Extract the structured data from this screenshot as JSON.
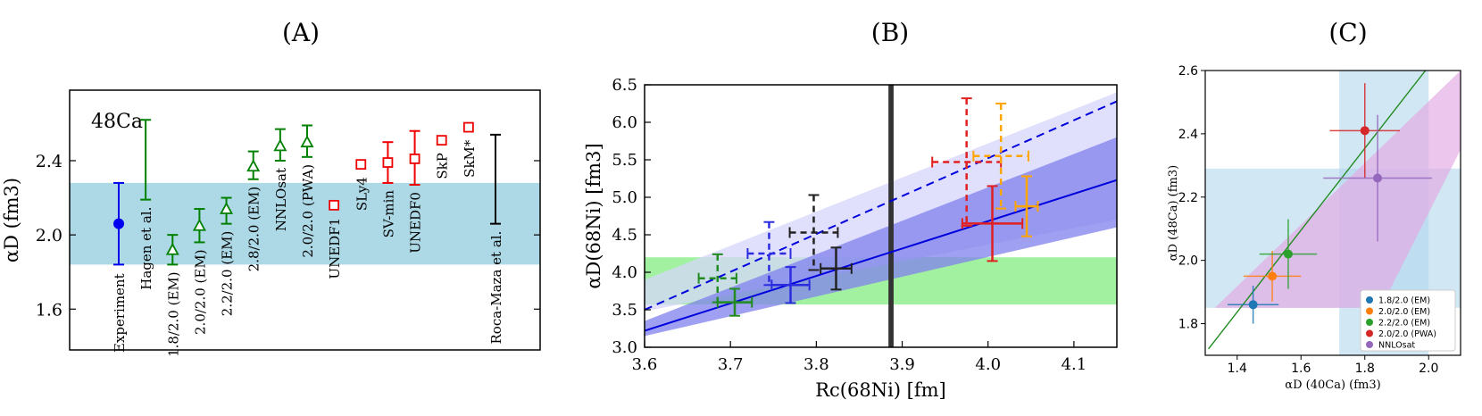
{
  "chart_data": [
    {
      "panel_label": "(A)",
      "type": "scatter",
      "annotation": "48Ca",
      "ylabel": "αD (fm3)",
      "ylim": [
        1.38,
        2.78
      ],
      "yticks": [
        1.6,
        2.0,
        2.4
      ],
      "band": {
        "low": 1.84,
        "high": 2.28,
        "color": "#add8e6"
      },
      "points": [
        {
          "label": "Experiment",
          "value": 2.06,
          "low": 1.84,
          "high": 2.28,
          "marker": "filled-circle",
          "color": "#0000ee"
        },
        {
          "label": "Hagen et al.",
          "low": 2.19,
          "high": 2.62,
          "marker": "none",
          "color": "#008000"
        },
        {
          "label": "1.8/2.0 (EM)",
          "value": 1.92,
          "low": 1.84,
          "high": 2.0,
          "marker": "open-triangle",
          "color": "#008000"
        },
        {
          "label": "2.0/2.0 (EM)",
          "value": 2.05,
          "low": 1.96,
          "high": 2.14,
          "marker": "open-triangle",
          "color": "#008000"
        },
        {
          "label": "2.2/2.0 (EM)",
          "value": 2.14,
          "low": 2.06,
          "high": 2.2,
          "marker": "open-triangle",
          "color": "#008000"
        },
        {
          "label": "2.8/2.0 (EM)",
          "value": 2.37,
          "low": 2.3,
          "high": 2.45,
          "marker": "open-triangle",
          "color": "#008000"
        },
        {
          "label": "NNLOsat",
          "value": 2.48,
          "low": 2.4,
          "high": 2.57,
          "marker": "open-triangle",
          "color": "#008000"
        },
        {
          "label": "2.0/2.0 (PWA)",
          "value": 2.5,
          "low": 2.42,
          "high": 2.59,
          "marker": "open-triangle",
          "color": "#008000"
        },
        {
          "label": "UNEDF1",
          "value": 2.16,
          "marker": "open-square",
          "color": "#ee0000"
        },
        {
          "label": "SLy4",
          "value": 2.38,
          "marker": "open-square",
          "color": "#ee0000"
        },
        {
          "label": "SV-min",
          "value": 2.39,
          "low": 2.28,
          "high": 2.5,
          "marker": "open-square",
          "color": "#ee0000"
        },
        {
          "label": "UNEDF0",
          "value": 2.41,
          "low": 2.27,
          "high": 2.56,
          "marker": "open-square",
          "color": "#ee0000"
        },
        {
          "label": "SkP",
          "value": 2.51,
          "marker": "open-square",
          "color": "#ee0000"
        },
        {
          "label": "SkM*",
          "value": 2.58,
          "marker": "open-square",
          "color": "#ee0000"
        },
        {
          "label": "Roca-Maza et al.",
          "low": 2.06,
          "high": 2.54,
          "marker": "none",
          "color": "#000000"
        }
      ]
    },
    {
      "panel_label": "(B)",
      "type": "scatter",
      "xlabel": "Rc(68Ni) [fm]",
      "ylabel": "αD(68Ni) [fm3]",
      "xlim": [
        3.6,
        4.15
      ],
      "ylim": [
        3.0,
        6.5
      ],
      "xticks": [
        3.6,
        3.7,
        3.8,
        3.9,
        4.0,
        4.1
      ],
      "yticks": [
        3.0,
        3.5,
        4.0,
        4.5,
        5.0,
        5.5,
        6.0,
        6.5
      ],
      "bands": [
        {
          "kind": "horizontal",
          "low": 3.57,
          "high": 4.2,
          "color": "#90ee90"
        },
        {
          "kind": "vertical",
          "low": 3.884,
          "high": 3.89,
          "color": "#333333"
        },
        {
          "kind": "wedge",
          "x0": 3.6,
          "x1": 4.15,
          "low0": 3.48,
          "high0": 3.9,
          "low1": 4.7,
          "high1": 6.4,
          "color": "#d6d6fb"
        },
        {
          "kind": "wedge",
          "x0": 3.6,
          "x1": 4.15,
          "low0": 3.15,
          "high0": 3.35,
          "low1": 4.6,
          "high1": 5.8,
          "color": "#8080ee"
        }
      ],
      "lines": [
        {
          "style": "dashed",
          "color": "#0000dd",
          "x": [
            3.6,
            4.15
          ],
          "y": [
            3.5,
            6.28
          ]
        },
        {
          "style": "solid",
          "color": "#0000dd",
          "x": [
            3.6,
            4.15
          ],
          "y": [
            3.22,
            5.23
          ]
        }
      ],
      "crosses": [
        {
          "x": 3.705,
          "y": 3.6,
          "xerr": 0.02,
          "yerr": 0.18,
          "style": "solid",
          "color": "#228b22"
        },
        {
          "x": 3.77,
          "y": 3.83,
          "xerr": 0.022,
          "yerr": 0.24,
          "style": "solid",
          "color": "#2b2be0"
        },
        {
          "x": 3.823,
          "y": 4.05,
          "xerr": 0.018,
          "yerr": 0.28,
          "style": "solid",
          "color": "#222222"
        },
        {
          "x": 4.005,
          "y": 4.65,
          "xerr": 0.035,
          "yerr": 0.5,
          "style": "solid",
          "color": "#e02020"
        },
        {
          "x": 4.045,
          "y": 4.88,
          "xerr": 0.013,
          "yerr": 0.4,
          "style": "solid",
          "color": "#ffa500"
        },
        {
          "x": 3.685,
          "y": 3.92,
          "xerr": 0.022,
          "yerr": 0.32,
          "style": "dashed",
          "color": "#228b22"
        },
        {
          "x": 3.745,
          "y": 4.25,
          "xerr": 0.025,
          "yerr": 0.42,
          "style": "dashed",
          "color": "#2b2be0"
        },
        {
          "x": 3.797,
          "y": 4.53,
          "xerr": 0.028,
          "yerr": 0.5,
          "style": "dashed",
          "color": "#222222"
        },
        {
          "x": 3.975,
          "y": 5.47,
          "xerr": 0.04,
          "yerr": 0.85,
          "style": "dashed",
          "color": "#e02020"
        },
        {
          "x": 4.015,
          "y": 5.55,
          "xerr": 0.032,
          "yerr": 0.7,
          "style": "dashed",
          "color": "#ffa500"
        }
      ]
    },
    {
      "panel_label": "(C)",
      "type": "scatter",
      "xlabel": "αD (40Ca) (fm3)",
      "ylabel": "αD (48Ca) (fm3)",
      "xlim": [
        1.3,
        2.1
      ],
      "ylim": [
        1.7,
        2.6
      ],
      "xticks": [
        1.4,
        1.6,
        1.8,
        2.0
      ],
      "yticks": [
        1.8,
        2.0,
        2.2,
        2.4,
        2.6
      ],
      "bands": [
        {
          "kind": "vertical",
          "low": 1.72,
          "high": 2.0,
          "color": "#b3d7ec"
        },
        {
          "kind": "horizontal",
          "low": 1.85,
          "high": 2.29,
          "color": "#b3d7ec"
        }
      ],
      "wedge": {
        "x": [
          1.3,
          1.85,
          2.1,
          2.1,
          1.33
        ],
        "y": [
          1.85,
          1.85,
          2.35,
          2.6,
          1.85
        ],
        "color": "#e4a8e4"
      },
      "line": {
        "x": [
          1.31,
          1.99
        ],
        "y": [
          1.72,
          2.6
        ],
        "color": "#228b22"
      },
      "points": [
        {
          "label": "1.8/2.0 (EM)",
          "x": 1.45,
          "y": 1.86,
          "xerr": 0.08,
          "yerr": 0.06,
          "color": "#1f77b4"
        },
        {
          "label": "2.0/2.0 (EM)",
          "x": 1.51,
          "y": 1.95,
          "xerr": 0.09,
          "yerr": 0.08,
          "color": "#ff7f0e"
        },
        {
          "label": "2.2/2.0 (EM)",
          "x": 1.56,
          "y": 2.02,
          "xerr": 0.09,
          "yerr": 0.11,
          "color": "#2ca02c"
        },
        {
          "label": "2.0/2.0 (PWA)",
          "x": 1.8,
          "y": 2.41,
          "xerr": 0.11,
          "yerr": 0.15,
          "color": "#d62728"
        },
        {
          "label": "NNLOsat",
          "x": 1.84,
          "y": 2.26,
          "xerr": 0.17,
          "yerr": 0.2,
          "color": "#9467bd"
        }
      ],
      "legend": {
        "placement": "bottom-right"
      }
    }
  ]
}
